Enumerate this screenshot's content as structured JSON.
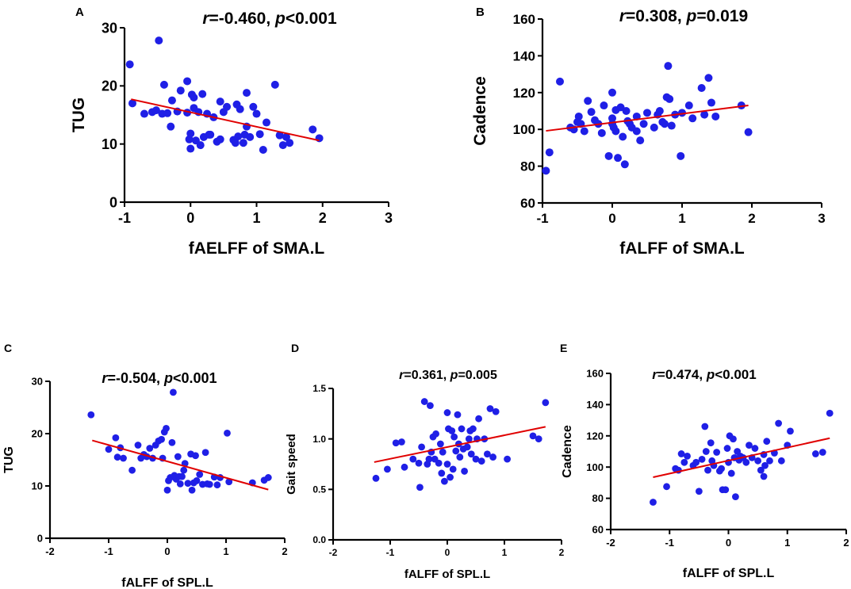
{
  "chart_data": [
    {
      "panel": "A",
      "type": "scatter",
      "title": {
        "r_symbol": "r",
        "r_value": "=-0.460, ",
        "p_symbol": "p",
        "p_value": "<0.001"
      },
      "xlabel": "fAELFF of SMA.L",
      "ylabel": "TUG",
      "xlim": [
        -1,
        3
      ],
      "ylim": [
        0,
        30
      ],
      "xticks": [
        -1,
        0,
        1,
        2,
        3
      ],
      "yticks": [
        0,
        10,
        20,
        30
      ],
      "fit_line": {
        "x": [
          -0.9,
          1.95
        ],
        "y": [
          17.7,
          10.6
        ]
      },
      "points": [
        [
          -0.92,
          23.7
        ],
        [
          -0.88,
          17.0
        ],
        [
          -0.7,
          15.2
        ],
        [
          -0.58,
          15.5
        ],
        [
          -0.52,
          15.8
        ],
        [
          -0.48,
          27.8
        ],
        [
          -0.43,
          15.2
        ],
        [
          -0.4,
          20.2
        ],
        [
          -0.35,
          15.3
        ],
        [
          -0.3,
          13.0
        ],
        [
          -0.28,
          17.5
        ],
        [
          -0.2,
          15.6
        ],
        [
          -0.15,
          19.2
        ],
        [
          -0.05,
          20.8
        ],
        [
          -0.05,
          15.4
        ],
        [
          -0.02,
          10.8
        ],
        [
          0.0,
          9.2
        ],
        [
          0.0,
          11.8
        ],
        [
          0.02,
          18.5
        ],
        [
          0.05,
          16.2
        ],
        [
          0.05,
          18.0
        ],
        [
          0.08,
          10.6
        ],
        [
          0.12,
          15.5
        ],
        [
          0.15,
          9.8
        ],
        [
          0.18,
          18.6
        ],
        [
          0.2,
          11.2
        ],
        [
          0.25,
          15.2
        ],
        [
          0.28,
          11.6
        ],
        [
          0.3,
          11.6
        ],
        [
          0.35,
          14.6
        ],
        [
          0.4,
          10.4
        ],
        [
          0.45,
          10.8
        ],
        [
          0.45,
          17.3
        ],
        [
          0.5,
          15.5
        ],
        [
          0.55,
          16.4
        ],
        [
          0.65,
          10.7
        ],
        [
          0.68,
          10.2
        ],
        [
          0.7,
          16.8
        ],
        [
          0.72,
          11.3
        ],
        [
          0.75,
          16.0
        ],
        [
          0.8,
          10.2
        ],
        [
          0.82,
          11.6
        ],
        [
          0.85,
          13.0
        ],
        [
          0.85,
          18.8
        ],
        [
          0.9,
          11.2
        ],
        [
          0.95,
          16.4
        ],
        [
          1.0,
          15.2
        ],
        [
          1.05,
          11.7
        ],
        [
          1.1,
          9.0
        ],
        [
          1.15,
          13.7
        ],
        [
          1.28,
          20.2
        ],
        [
          1.35,
          11.5
        ],
        [
          1.4,
          9.8
        ],
        [
          1.45,
          11.2
        ],
        [
          1.5,
          10.2
        ],
        [
          1.85,
          12.5
        ],
        [
          1.95,
          11.0
        ]
      ]
    },
    {
      "panel": "B",
      "type": "scatter",
      "title": {
        "r_symbol": "r",
        "r_value": "=0.308, ",
        "p_symbol": "p",
        "p_value": "=0.019"
      },
      "xlabel": "fALFF of SMA.L",
      "ylabel": "Cadence",
      "xlim": [
        -1,
        3
      ],
      "ylim": [
        60,
        160
      ],
      "xticks": [
        -1,
        0,
        1,
        2,
        3
      ],
      "yticks": [
        60,
        80,
        100,
        120,
        140,
        160
      ],
      "fit_line": {
        "x": [
          -0.95,
          1.95
        ],
        "y": [
          99.2,
          113
        ]
      },
      "points": [
        [
          -0.95,
          77.5
        ],
        [
          -0.9,
          87.5
        ],
        [
          -0.75,
          126
        ],
        [
          -0.6,
          101
        ],
        [
          -0.55,
          100
        ],
        [
          -0.5,
          104
        ],
        [
          -0.48,
          107
        ],
        [
          -0.45,
          103
        ],
        [
          -0.4,
          99
        ],
        [
          -0.35,
          115.5
        ],
        [
          -0.3,
          109.5
        ],
        [
          -0.25,
          105
        ],
        [
          -0.2,
          103
        ],
        [
          -0.15,
          98
        ],
        [
          -0.12,
          113
        ],
        [
          -0.05,
          85.5
        ],
        [
          0.0,
          120
        ],
        [
          0.0,
          106
        ],
        [
          0.0,
          103
        ],
        [
          0.02,
          101
        ],
        [
          0.05,
          99
        ],
        [
          0.05,
          110.5
        ],
        [
          0.08,
          84.5
        ],
        [
          0.12,
          112
        ],
        [
          0.15,
          96
        ],
        [
          0.18,
          81
        ],
        [
          0.2,
          110
        ],
        [
          0.22,
          104.5
        ],
        [
          0.25,
          103
        ],
        [
          0.28,
          101
        ],
        [
          0.35,
          99
        ],
        [
          0.35,
          107
        ],
        [
          0.4,
          94
        ],
        [
          0.45,
          103
        ],
        [
          0.5,
          109
        ],
        [
          0.6,
          101
        ],
        [
          0.65,
          108
        ],
        [
          0.68,
          110
        ],
        [
          0.72,
          104
        ],
        [
          0.75,
          103
        ],
        [
          0.78,
          117.5
        ],
        [
          0.8,
          134.5
        ],
        [
          0.82,
          116.5
        ],
        [
          0.85,
          102
        ],
        [
          0.9,
          108
        ],
        [
          0.98,
          85.5
        ],
        [
          1.0,
          109
        ],
        [
          1.1,
          113
        ],
        [
          1.15,
          106
        ],
        [
          1.28,
          122.5
        ],
        [
          1.32,
          108
        ],
        [
          1.38,
          128
        ],
        [
          1.42,
          114.5
        ],
        [
          1.48,
          107
        ],
        [
          1.85,
          113
        ],
        [
          1.95,
          98.5
        ]
      ]
    },
    {
      "panel": "C",
      "type": "scatter",
      "title": {
        "r_symbol": "r",
        "r_value": "=-0.504, ",
        "p_symbol": "p",
        "p_value": "<0.001"
      },
      "xlabel": "fALFF of SPL.L",
      "ylabel": "TUG",
      "xlim": [
        -2,
        2
      ],
      "ylim": [
        0,
        30
      ],
      "xticks": [
        -2,
        -1,
        0,
        1,
        2
      ],
      "yticks": [
        0,
        10,
        20,
        30
      ],
      "fit_line": {
        "x": [
          -1.28,
          1.72
        ],
        "y": [
          18.7,
          9.3
        ]
      },
      "points": [
        [
          -1.3,
          23.6
        ],
        [
          -1.0,
          17.0
        ],
        [
          -0.88,
          19.2
        ],
        [
          -0.85,
          15.5
        ],
        [
          -0.8,
          17.3
        ],
        [
          -0.75,
          15.3
        ],
        [
          -0.6,
          13.0
        ],
        [
          -0.5,
          17.8
        ],
        [
          -0.45,
          15.3
        ],
        [
          -0.4,
          16.0
        ],
        [
          -0.35,
          15.6
        ],
        [
          -0.3,
          17.2
        ],
        [
          -0.25,
          15.3
        ],
        [
          -0.2,
          17.8
        ],
        [
          -0.15,
          18.6
        ],
        [
          -0.1,
          18.9
        ],
        [
          -0.08,
          15.3
        ],
        [
          -0.05,
          20.3
        ],
        [
          -0.02,
          21.0
        ],
        [
          0.0,
          9.2
        ],
        [
          0.02,
          11.0
        ],
        [
          0.05,
          11.6
        ],
        [
          0.08,
          18.3
        ],
        [
          0.1,
          27.9
        ],
        [
          0.12,
          12.0
        ],
        [
          0.15,
          11.3
        ],
        [
          0.18,
          15.6
        ],
        [
          0.2,
          11.8
        ],
        [
          0.22,
          10.4
        ],
        [
          0.25,
          11.8
        ],
        [
          0.28,
          13.0
        ],
        [
          0.3,
          14.3
        ],
        [
          0.35,
          10.5
        ],
        [
          0.4,
          16.1
        ],
        [
          0.42,
          9.2
        ],
        [
          0.45,
          10.6
        ],
        [
          0.48,
          15.8
        ],
        [
          0.5,
          11.0
        ],
        [
          0.55,
          12.2
        ],
        [
          0.6,
          10.3
        ],
        [
          0.65,
          16.4
        ],
        [
          0.68,
          10.4
        ],
        [
          0.72,
          10.3
        ],
        [
          0.8,
          11.7
        ],
        [
          0.85,
          10.2
        ],
        [
          0.9,
          11.6
        ],
        [
          1.02,
          20.1
        ],
        [
          1.05,
          10.8
        ],
        [
          1.45,
          10.6
        ],
        [
          1.65,
          11.1
        ],
        [
          1.72,
          11.6
        ]
      ]
    },
    {
      "panel": "D",
      "type": "scatter",
      "title": {
        "r_symbol": "r",
        "r_value": "=0.361, ",
        "p_symbol": "p",
        "p_value": "=0.005"
      },
      "xlabel": "fALFF of SPL.L",
      "ylabel": "Gait speed",
      "xlim": [
        -2,
        2
      ],
      "ylim": [
        0.0,
        1.5
      ],
      "xticks": [
        -2,
        -1,
        0,
        1,
        2
      ],
      "yticks": [
        "0.0",
        "0.5",
        "1.0",
        "1.5"
      ],
      "fit_line": {
        "x": [
          -1.28,
          1.72
        ],
        "y": [
          0.77,
          1.12
        ]
      },
      "points": [
        [
          -1.25,
          0.61
        ],
        [
          -1.05,
          0.7
        ],
        [
          -0.9,
          0.96
        ],
        [
          -0.8,
          0.97
        ],
        [
          -0.75,
          0.72
        ],
        [
          -0.6,
          0.8
        ],
        [
          -0.5,
          0.76
        ],
        [
          -0.48,
          0.52
        ],
        [
          -0.45,
          0.92
        ],
        [
          -0.4,
          1.37
        ],
        [
          -0.35,
          0.75
        ],
        [
          -0.32,
          0.8
        ],
        [
          -0.3,
          1.33
        ],
        [
          -0.28,
          0.87
        ],
        [
          -0.25,
          1.02
        ],
        [
          -0.22,
          0.8
        ],
        [
          -0.2,
          1.05
        ],
        [
          -0.15,
          0.76
        ],
        [
          -0.12,
          0.95
        ],
        [
          -0.1,
          0.66
        ],
        [
          -0.08,
          0.87
        ],
        [
          -0.05,
          0.58
        ],
        [
          0.0,
          0.75
        ],
        [
          0.0,
          1.26
        ],
        [
          0.02,
          1.1
        ],
        [
          0.05,
          0.62
        ],
        [
          0.08,
          1.08
        ],
        [
          0.1,
          0.7
        ],
        [
          0.12,
          1.02
        ],
        [
          0.15,
          0.88
        ],
        [
          0.18,
          1.24
        ],
        [
          0.2,
          0.95
        ],
        [
          0.22,
          0.82
        ],
        [
          0.25,
          1.1
        ],
        [
          0.28,
          0.9
        ],
        [
          0.3,
          0.68
        ],
        [
          0.35,
          0.92
        ],
        [
          0.38,
          1.0
        ],
        [
          0.4,
          1.08
        ],
        [
          0.42,
          0.85
        ],
        [
          0.45,
          1.1
        ],
        [
          0.5,
          0.8
        ],
        [
          0.52,
          1.0
        ],
        [
          0.55,
          1.2
        ],
        [
          0.6,
          0.78
        ],
        [
          0.65,
          1.0
        ],
        [
          0.7,
          0.85
        ],
        [
          0.75,
          1.3
        ],
        [
          0.8,
          0.82
        ],
        [
          0.85,
          1.27
        ],
        [
          1.05,
          0.8
        ],
        [
          1.5,
          1.03
        ],
        [
          1.6,
          1.0
        ],
        [
          1.72,
          1.36
        ]
      ]
    },
    {
      "panel": "E",
      "type": "scatter",
      "title": {
        "r_symbol": "r",
        "r_value": "=0.474, ",
        "p_symbol": "p",
        "p_value": "<0.001"
      },
      "xlabel": "fALFF of SPL.L",
      "ylabel": "Cadence",
      "xlim": [
        -2,
        2
      ],
      "ylim": [
        60,
        160
      ],
      "xticks": [
        -2,
        -1,
        0,
        1,
        2
      ],
      "yticks": [
        60,
        80,
        100,
        120,
        140,
        160
      ],
      "fit_line": {
        "x": [
          -1.28,
          1.72
        ],
        "y": [
          93.5,
          118.5
        ]
      },
      "points": [
        [
          -1.28,
          77.5
        ],
        [
          -1.05,
          87.5
        ],
        [
          -0.9,
          99
        ],
        [
          -0.85,
          98
        ],
        [
          -0.8,
          108.5
        ],
        [
          -0.75,
          103
        ],
        [
          -0.7,
          107
        ],
        [
          -0.6,
          101
        ],
        [
          -0.55,
          103
        ],
        [
          -0.5,
          84.5
        ],
        [
          -0.45,
          105
        ],
        [
          -0.4,
          126
        ],
        [
          -0.38,
          110
        ],
        [
          -0.35,
          98
        ],
        [
          -0.3,
          115.5
        ],
        [
          -0.28,
          104
        ],
        [
          -0.25,
          101
        ],
        [
          -0.2,
          109.5
        ],
        [
          -0.15,
          97.5
        ],
        [
          -0.12,
          99
        ],
        [
          -0.1,
          85.5
        ],
        [
          -0.05,
          85.5
        ],
        [
          -0.02,
          112
        ],
        [
          0.0,
          103
        ],
        [
          0.02,
          120
        ],
        [
          0.05,
          96
        ],
        [
          0.08,
          118
        ],
        [
          0.1,
          106
        ],
        [
          0.12,
          81
        ],
        [
          0.15,
          110
        ],
        [
          0.18,
          104.5
        ],
        [
          0.2,
          107
        ],
        [
          0.25,
          106
        ],
        [
          0.3,
          103
        ],
        [
          0.35,
          114
        ],
        [
          0.4,
          106
        ],
        [
          0.45,
          112
        ],
        [
          0.5,
          104
        ],
        [
          0.55,
          98
        ],
        [
          0.6,
          94
        ],
        [
          0.6,
          108
        ],
        [
          0.62,
          101
        ],
        [
          0.65,
          116.5
        ],
        [
          0.7,
          104
        ],
        [
          0.78,
          109
        ],
        [
          0.85,
          128
        ],
        [
          0.9,
          104
        ],
        [
          1.0,
          114
        ],
        [
          1.05,
          123
        ],
        [
          1.48,
          108.5
        ],
        [
          1.6,
          109.5
        ],
        [
          1.72,
          134.5
        ]
      ]
    }
  ]
}
